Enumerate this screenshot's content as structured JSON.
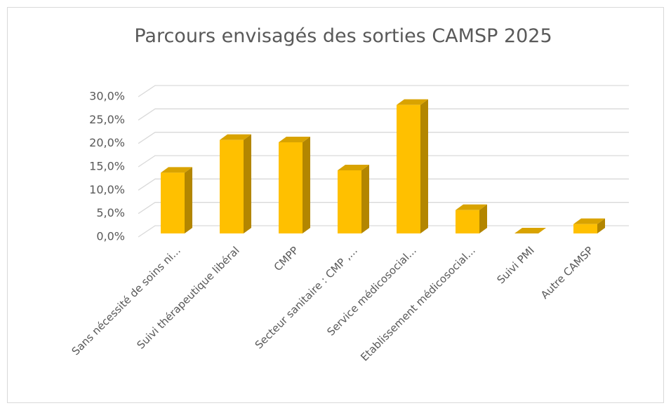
{
  "chart_data": {
    "type": "bar3d",
    "title": "Parcours envisagés des sorties CAMSP 2025",
    "categories": [
      "Sans nécessité de soins ni...",
      "Suivi thérapeutique libéral",
      "CMPP",
      "Secteur sanitaire : CMP ,...",
      "Service médicosocial...",
      "Etablissement médicosocial...",
      "Suivi PMI",
      "Autre CAMSP"
    ],
    "values": [
      13.0,
      20.0,
      19.5,
      13.5,
      27.5,
      5.0,
      0.0,
      2.0
    ],
    "color": "#FFC000",
    "ylim": [
      0,
      30
    ],
    "yticks": [
      {
        "value": 0,
        "label": "0,0%"
      },
      {
        "value": 5,
        "label": "5,0%"
      },
      {
        "value": 10,
        "label": "10,0%"
      },
      {
        "value": 15,
        "label": "15,0%"
      },
      {
        "value": 20,
        "label": "20,0%"
      },
      {
        "value": 25,
        "label": "25,0%"
      },
      {
        "value": 30,
        "label": "30,0%"
      }
    ],
    "grid": true
  }
}
